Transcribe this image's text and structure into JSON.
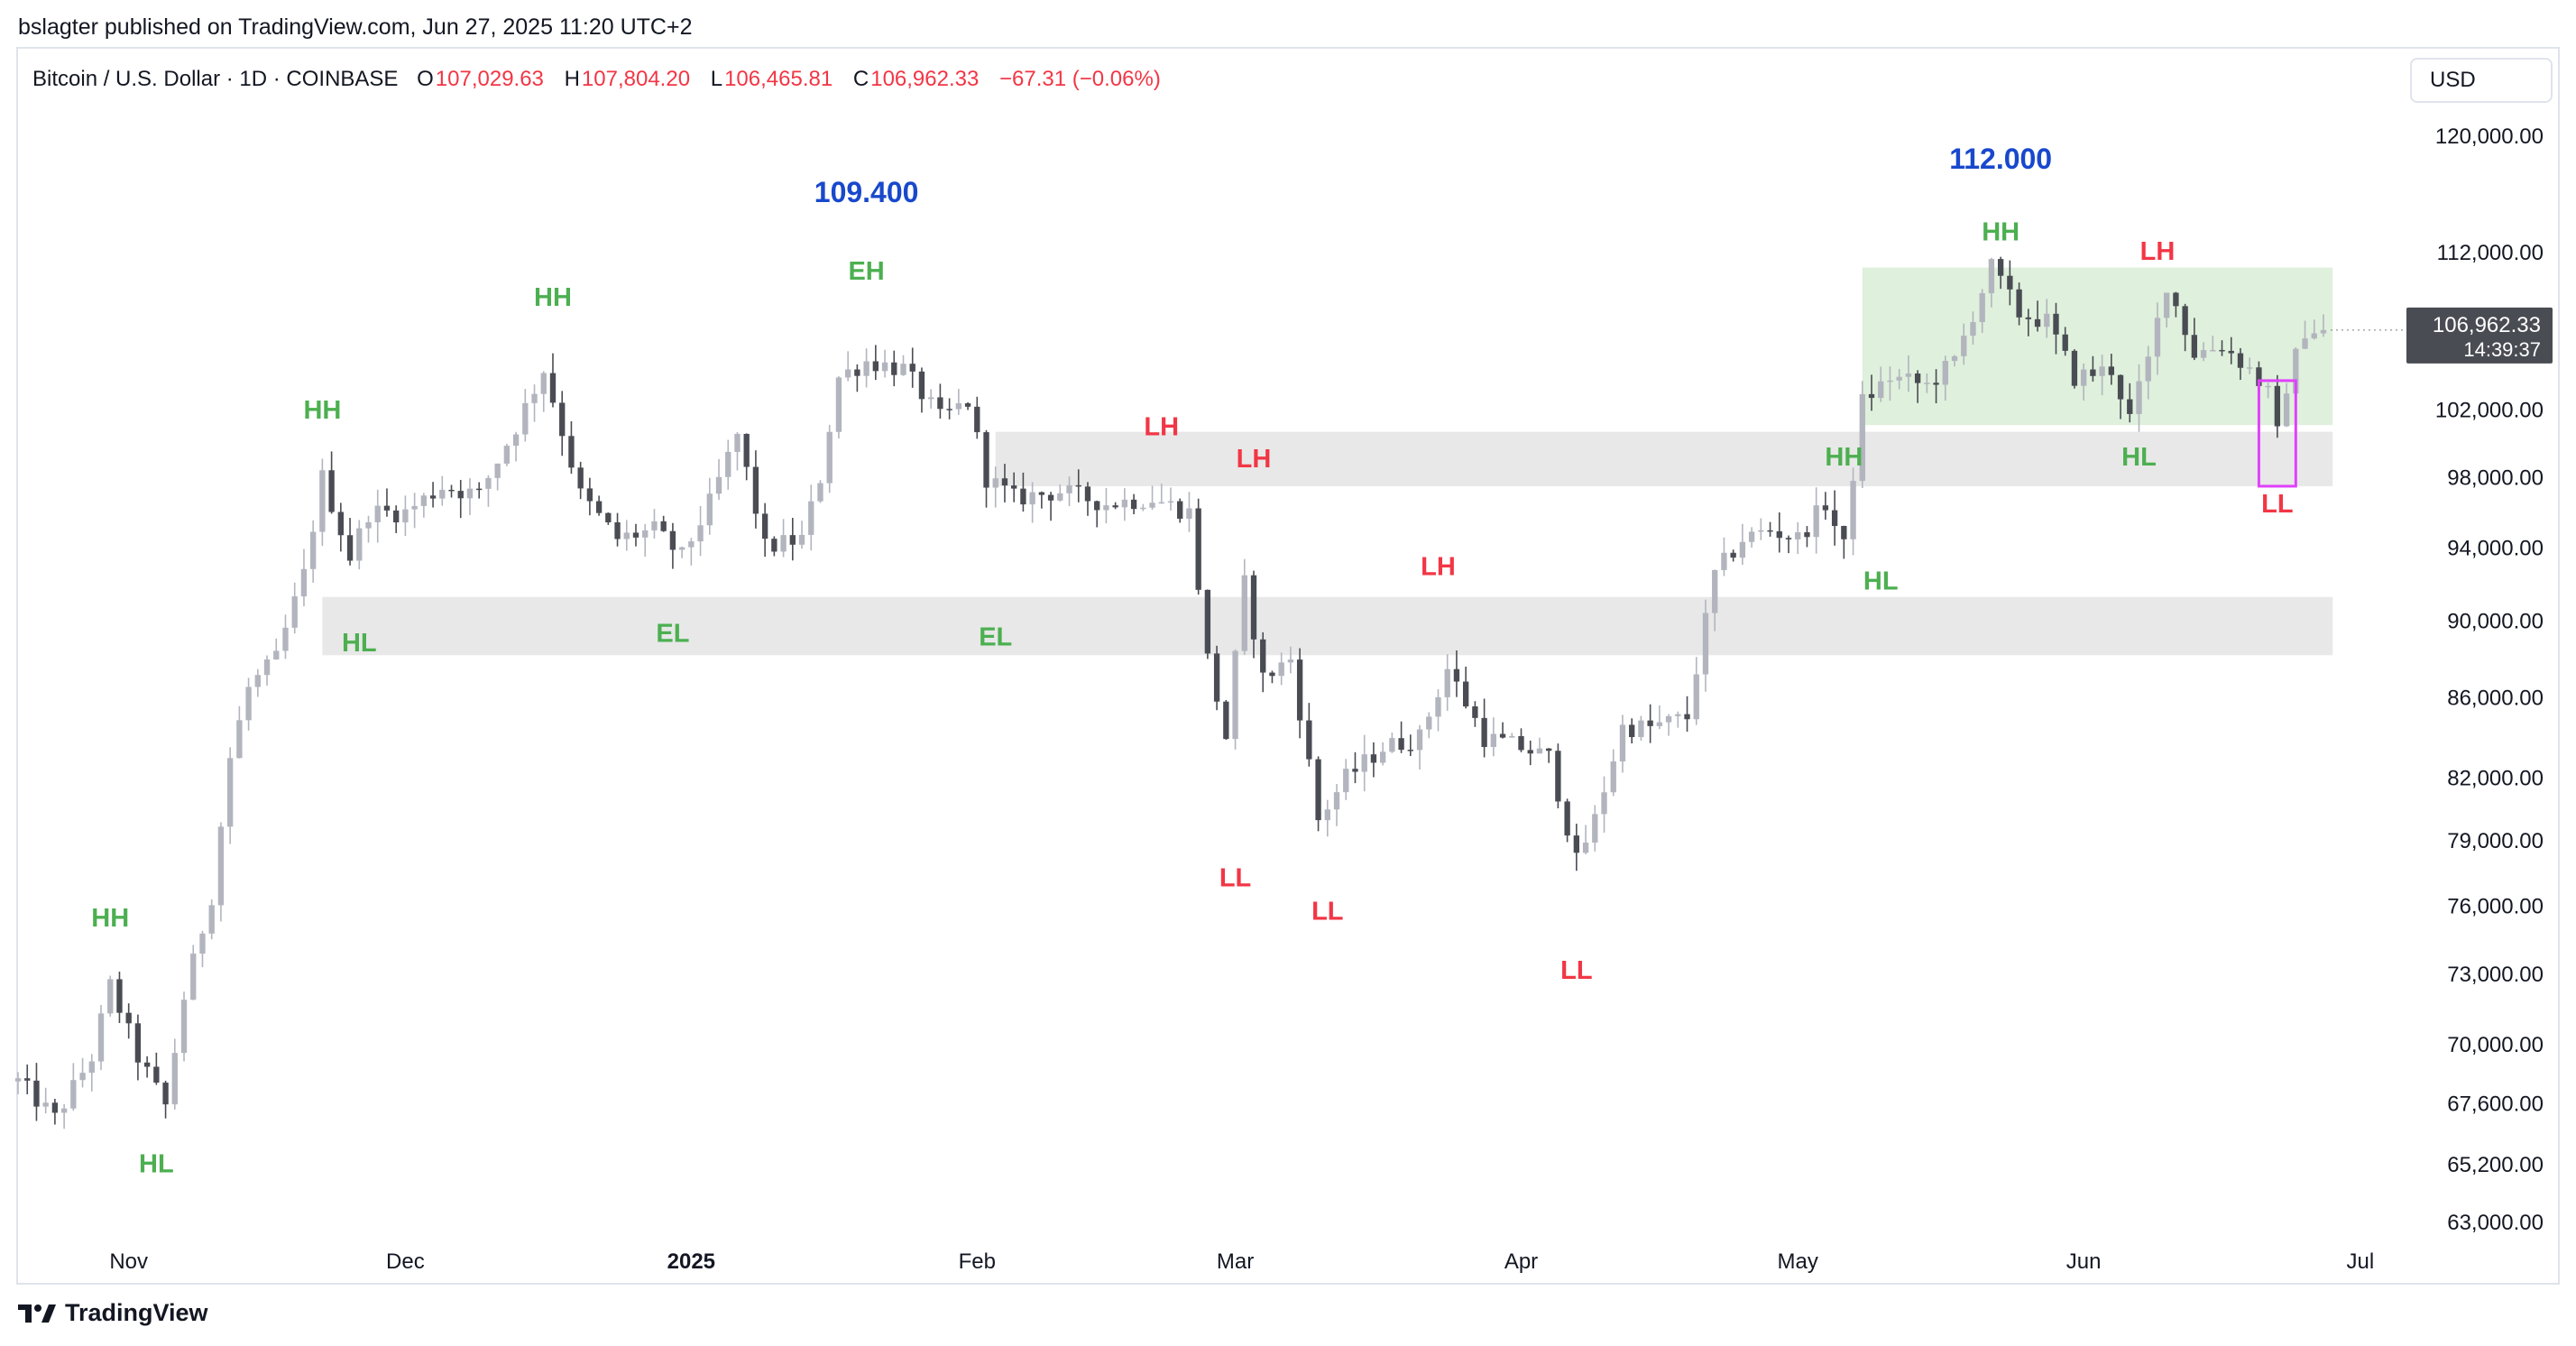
{
  "publisher_line": "bslagter published on TradingView.com, Jun 27, 2025 11:20 UTC+2",
  "header": {
    "symbol": "Bitcoin / U.S. Dollar · 1D · COINBASE",
    "open_label": "O",
    "open": "107,029.63",
    "high_label": "H",
    "high": "107,804.20",
    "low_label": "L",
    "low": "106,465.81",
    "close_label": "C",
    "close": "106,962.33",
    "change": "−67.31 (−0.06%)"
  },
  "currency_button": "USD",
  "price_tag": {
    "price": "106,962.33",
    "countdown": "14:39:37"
  },
  "footer": {
    "brand": "TradingView"
  },
  "colors": {
    "bull": "#b2b5be",
    "bear": "#4a4c53",
    "green_label": "#4caf50",
    "red_label": "#f23645",
    "blue_label": "#1848cc",
    "magenta_box": "#e040fb"
  },
  "chart_data": {
    "type": "candlestick",
    "title": "Bitcoin / U.S. Dollar · 1D · COINBASE",
    "scale": "log",
    "y_ticks": [
      120000,
      112000,
      102000,
      98000,
      94000,
      90000,
      86000,
      82000,
      79000,
      76000,
      73000,
      70000,
      67600,
      65200,
      63000
    ],
    "y_tick_labels": [
      "120,000.00",
      "112,000.00",
      "102,000.00",
      "98,000.00",
      "94,000.00",
      "90,000.00",
      "86,000.00",
      "82,000.00",
      "79,000.00",
      "76,000.00",
      "73,000.00",
      "70,000.00",
      "67,600.00",
      "65,200.00",
      "63,000.00"
    ],
    "x_ticks": [
      {
        "label": "Nov",
        "date": "2024-11-01",
        "bold": false
      },
      {
        "label": "Dec",
        "date": "2024-12-01",
        "bold": false
      },
      {
        "label": "2025",
        "date": "2025-01-01",
        "bold": true
      },
      {
        "label": "Feb",
        "date": "2025-02-01",
        "bold": false
      },
      {
        "label": "Mar",
        "date": "2025-03-01",
        "bold": false
      },
      {
        "label": "Apr",
        "date": "2025-04-01",
        "bold": false
      },
      {
        "label": "May",
        "date": "2025-05-01",
        "bold": false
      },
      {
        "label": "Jun",
        "date": "2025-06-01",
        "bold": false
      },
      {
        "label": "Jul",
        "date": "2025-07-01",
        "bold": false
      }
    ],
    "x_range": [
      "2024-10-20",
      "2025-07-06"
    ],
    "y_range": [
      62000,
      122000
    ],
    "anchors": [
      [
        "2024-10-20",
        68500
      ],
      [
        "2024-10-24",
        67000
      ],
      [
        "2024-10-28",
        69500
      ],
      [
        "2024-10-30",
        72500
      ],
      [
        "2024-11-02",
        69500
      ],
      [
        "2024-11-05",
        67500
      ],
      [
        "2024-11-07",
        72000
      ],
      [
        "2024-11-10",
        76500
      ],
      [
        "2024-11-12",
        83000
      ],
      [
        "2024-11-14",
        86500
      ],
      [
        "2024-11-17",
        88000
      ],
      [
        "2024-11-20",
        92500
      ],
      [
        "2024-11-22",
        98000
      ],
      [
        "2024-11-25",
        93500
      ],
      [
        "2024-11-27",
        96000
      ],
      [
        "2024-12-01",
        96000
      ],
      [
        "2024-12-05",
        97500
      ],
      [
        "2024-12-09",
        97000
      ],
      [
        "2024-12-13",
        101000
      ],
      [
        "2024-12-16",
        104500
      ],
      [
        "2024-12-20",
        97000
      ],
      [
        "2024-12-24",
        94500
      ],
      [
        "2024-12-28",
        95000
      ],
      [
        "2024-12-31",
        93500
      ],
      [
        "2025-01-03",
        96500
      ],
      [
        "2025-01-06",
        100500
      ],
      [
        "2025-01-09",
        94000
      ],
      [
        "2025-01-13",
        94500
      ],
      [
        "2025-01-15",
        98000
      ],
      [
        "2025-01-17",
        104000
      ],
      [
        "2025-01-20",
        105000
      ],
      [
        "2025-01-24",
        104500
      ],
      [
        "2025-01-28",
        101500
      ],
      [
        "2025-01-31",
        102500
      ],
      [
        "2025-02-02",
        98000
      ],
      [
        "2025-02-05",
        96800
      ],
      [
        "2025-02-10",
        97200
      ],
      [
        "2025-02-15",
        96500
      ],
      [
        "2025-02-20",
        96800
      ],
      [
        "2025-02-24",
        96000
      ],
      [
        "2025-02-26",
        88000
      ],
      [
        "2025-02-28",
        84000
      ],
      [
        "2025-03-02",
        92000
      ],
      [
        "2025-03-04",
        87000
      ],
      [
        "2025-03-07",
        88000
      ],
      [
        "2025-03-10",
        80000
      ],
      [
        "2025-03-13",
        82000
      ],
      [
        "2025-03-17",
        83500
      ],
      [
        "2025-03-21",
        84000
      ],
      [
        "2025-03-24",
        87500
      ],
      [
        "2025-03-28",
        84000
      ],
      [
        "2025-04-01",
        83500
      ],
      [
        "2025-04-04",
        83000
      ],
      [
        "2025-04-07",
        78000
      ],
      [
        "2025-04-09",
        80000
      ],
      [
        "2025-04-12",
        84500
      ],
      [
        "2025-04-15",
        84500
      ],
      [
        "2025-04-19",
        85000
      ],
      [
        "2025-04-22",
        92500
      ],
      [
        "2025-04-25",
        94500
      ],
      [
        "2025-04-28",
        95000
      ],
      [
        "2025-05-01",
        94500
      ],
      [
        "2025-05-04",
        96500
      ],
      [
        "2025-05-06",
        94000
      ],
      [
        "2025-05-08",
        102500
      ],
      [
        "2025-05-11",
        104000
      ],
      [
        "2025-05-15",
        103500
      ],
      [
        "2025-05-18",
        105000
      ],
      [
        "2025-05-22",
        111000
      ],
      [
        "2025-05-25",
        108000
      ],
      [
        "2025-05-28",
        107500
      ],
      [
        "2025-05-31",
        104000
      ],
      [
        "2025-06-04",
        104500
      ],
      [
        "2025-06-06",
        101500
      ],
      [
        "2025-06-08",
        105000
      ],
      [
        "2025-06-10",
        110000
      ],
      [
        "2025-06-13",
        105500
      ],
      [
        "2025-06-16",
        106000
      ],
      [
        "2025-06-19",
        104500
      ],
      [
        "2025-06-21",
        103000
      ],
      [
        "2025-06-22",
        100500
      ],
      [
        "2025-06-23",
        103500
      ],
      [
        "2025-06-25",
        107000
      ],
      [
        "2025-06-27",
        106962
      ]
    ],
    "zones": [
      {
        "from": "2024-11-22",
        "to": "2025-06-28",
        "low": 88200,
        "high": 91300,
        "color": "#e8e8e8"
      },
      {
        "from": "2025-02-03",
        "to": "2025-06-28",
        "low": 97500,
        "high": 100700,
        "color": "#e8e8e8"
      },
      {
        "from": "2025-05-08",
        "to": "2025-06-28",
        "low": 101100,
        "high": 111000,
        "color": "#dff0dc"
      }
    ],
    "highlight_box": {
      "from": "2025-06-20",
      "to": "2025-06-24",
      "low": 97500,
      "high": 103800,
      "color": "#e040fb"
    },
    "annotations": [
      {
        "text": "HH",
        "date": "2024-10-30",
        "price": 75100,
        "color": "green"
      },
      {
        "text": "HL",
        "date": "2024-11-04",
        "price": 64900,
        "color": "green"
      },
      {
        "text": "HH",
        "date": "2024-11-22",
        "price": 101500,
        "color": "green"
      },
      {
        "text": "HL",
        "date": "2024-11-26",
        "price": 88400,
        "color": "green"
      },
      {
        "text": "HH",
        "date": "2024-12-17",
        "price": 108500,
        "color": "green"
      },
      {
        "text": "EL",
        "date": "2024-12-30",
        "price": 88900,
        "color": "green"
      },
      {
        "text": "109.400",
        "date": "2025-01-20",
        "price": 115400,
        "color": "blue"
      },
      {
        "text": "EH",
        "date": "2025-01-20",
        "price": 110200,
        "color": "green"
      },
      {
        "text": "EL",
        "date": "2025-02-03",
        "price": 88700,
        "color": "green"
      },
      {
        "text": "LH",
        "date": "2025-02-21",
        "price": 100500,
        "color": "red"
      },
      {
        "text": "LH",
        "date": "2025-03-03",
        "price": 98600,
        "color": "red"
      },
      {
        "text": "LL",
        "date": "2025-03-01",
        "price": 76900,
        "color": "red"
      },
      {
        "text": "LL",
        "date": "2025-03-11",
        "price": 75400,
        "color": "red"
      },
      {
        "text": "LH",
        "date": "2025-03-23",
        "price": 92500,
        "color": "red"
      },
      {
        "text": "LL",
        "date": "2025-04-07",
        "price": 72800,
        "color": "red"
      },
      {
        "text": "HH",
        "date": "2025-05-06",
        "price": 98700,
        "color": "green"
      },
      {
        "text": "HL",
        "date": "2025-05-10",
        "price": 91700,
        "color": "green"
      },
      {
        "text": "112.000",
        "date": "2025-05-23",
        "price": 117700,
        "color": "blue"
      },
      {
        "text": "HH",
        "date": "2025-05-23",
        "price": 112800,
        "color": "green"
      },
      {
        "text": "LH",
        "date": "2025-06-09",
        "price": 111500,
        "color": "red"
      },
      {
        "text": "HL",
        "date": "2025-06-07",
        "price": 98700,
        "color": "green"
      },
      {
        "text": "LL",
        "date": "2025-06-22",
        "price": 96000,
        "color": "red"
      }
    ],
    "last_price": 106962.33
  }
}
